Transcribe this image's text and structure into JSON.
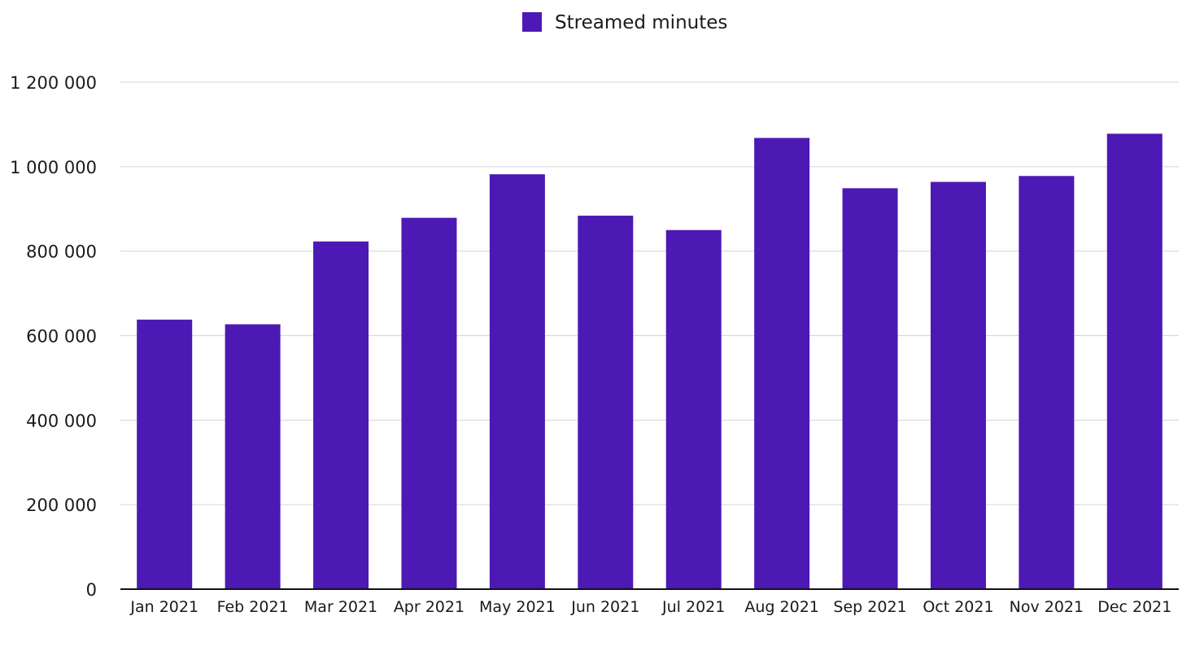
{
  "chart_data": {
    "type": "bar",
    "title": "",
    "xlabel": "",
    "ylabel": "",
    "categories": [
      "Jan 2021",
      "Feb 2021",
      "Mar 2021",
      "Apr 2021",
      "May 2021",
      "Jun 2021",
      "Jul 2021",
      "Aug 2021",
      "Sep 2021",
      "Oct 2021",
      "Nov 2021",
      "Dec 2021"
    ],
    "series": [
      {
        "name": "Streamed minutes",
        "color": "#4c19b4",
        "values": [
          638000,
          627000,
          823000,
          879000,
          982000,
          884000,
          850000,
          1068000,
          949000,
          964000,
          978000,
          1078000
        ]
      }
    ],
    "ylim": [
      0,
      1200000
    ],
    "y_ticks": [
      0,
      200000,
      400000,
      600000,
      800000,
      1000000,
      1200000
    ],
    "y_tick_labels": [
      "0",
      "200 000",
      "400 000",
      "600 000",
      "800 000",
      "1 000 000",
      "1 200 000"
    ],
    "grid": true,
    "legend_position": "top-center"
  }
}
